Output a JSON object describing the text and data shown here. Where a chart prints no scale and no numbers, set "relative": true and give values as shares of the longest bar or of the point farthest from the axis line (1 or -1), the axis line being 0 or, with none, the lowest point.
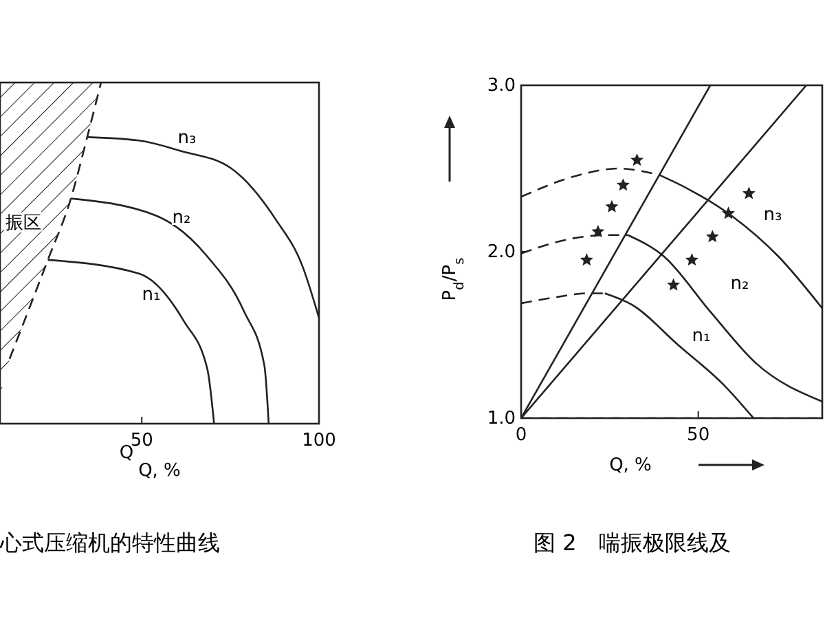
{
  "chart_data": [
    {
      "type": "line",
      "title": "心式压缩机的特性曲线",
      "xlabel": "Q, %",
      "relative": true,
      "tick_labels": "x",
      "xlim": [
        10,
        100
      ],
      "xticks": [
        50,
        100
      ],
      "series": [
        {
          "color": "#222222",
          "line_style": "dashed",
          "x": [
            12.7,
            23.5,
            30,
            34.6,
            38.5
          ],
          "values": [
            0.19,
            0.48,
            0.66,
            0.84,
            1
          ]
        },
        {
          "color": "#222222",
          "line_style": "solid",
          "x": [
            34.6,
            49.2,
            60.8,
            75,
            87.7,
            95.4,
            100
          ],
          "values": [
            0.84,
            0.83,
            0.8,
            0.75,
            0.6,
            0.46,
            0.31
          ]
        },
        {
          "color": "#222222",
          "line_style": "solid",
          "x": [
            30,
            54,
            68.5,
            78.8,
            84.6,
            85.8
          ],
          "values": [
            0.66,
            0.61,
            0.49,
            0.33,
            0.17,
            0
          ]
        },
        {
          "color": "#222222",
          "line_style": "solid",
          "x": [
            23.5,
            49.2,
            61.9,
            68.5,
            70.4
          ],
          "values": [
            0.48,
            0.44,
            0.3,
            0.16,
            0
          ]
        }
      ],
      "annotations": [
        "n₃",
        "n₂",
        "n₁",
        "振区",
        "Q"
      ]
    },
    {
      "type": "line",
      "title": "图 2　喘振极限线及",
      "xlabel": "Q, %",
      "ylabel": "P$_{d}$/P$_{s}$",
      "xlim": [
        0,
        85
      ],
      "ylim": [
        1,
        3
      ],
      "xticks": [
        0,
        50
      ],
      "yticks": [
        {
          "value": 1,
          "label": "1.0"
        },
        {
          "value": 2,
          "label": "2.0"
        },
        {
          "value": 3,
          "label": "3.0"
        }
      ],
      "ref_lines": [
        {
          "axis": "y",
          "value": 1,
          "line_style": "dashed"
        }
      ],
      "series": [
        {
          "color": "#222222",
          "line_style": "solid",
          "x": [
            0,
            53.4
          ],
          "values": [
            1,
            3
          ]
        },
        {
          "color": "#222222",
          "line_style": "solid",
          "x": [
            0,
            80.5
          ],
          "values": [
            1,
            3
          ]
        },
        {
          "color": "#222222",
          "line_style": "dashed",
          "x": [
            0,
            14.6,
            27.5,
            39.1
          ],
          "values": [
            2.33,
            2.45,
            2.5,
            2.46
          ]
        },
        {
          "color": "#222222",
          "line_style": "solid",
          "x": [
            39.1,
            46.9,
            59.8,
            72.7,
            85
          ],
          "values": [
            2.46,
            2.38,
            2.21,
            1.97,
            1.66
          ]
        },
        {
          "color": "#222222",
          "line_style": "dashed",
          "x": [
            0,
            14.6,
            23.6,
            30.1
          ],
          "values": [
            1.99,
            2.08,
            2.1,
            2.1
          ]
        },
        {
          "color": "#222222",
          "line_style": "solid",
          "x": [
            30.1,
            40.4,
            53.4,
            66.3,
            85
          ],
          "values": [
            2.1,
            1.97,
            1.64,
            1.33,
            1.1
          ]
        },
        {
          "color": "#222222",
          "line_style": "dashed",
          "x": [
            0,
            10.7,
            18.5,
            23.6
          ],
          "values": [
            1.69,
            1.73,
            1.75,
            1.75
          ]
        },
        {
          "color": "#222222",
          "line_style": "solid",
          "x": [
            23.6,
            31.4,
            44.3,
            57.2,
            65.6
          ],
          "values": [
            1.75,
            1.68,
            1.44,
            1.2,
            1
          ]
        },
        {
          "type": "scatter",
          "marker": "star",
          "color": "#222222",
          "x": [
            32.7,
            28.8,
            25.6,
            21.7,
            18.5,
            64.3,
            58.5,
            54,
            48.2,
            43
          ],
          "values": [
            2.55,
            2.4,
            2.27,
            2.12,
            1.95,
            2.35,
            2.23,
            2.09,
            1.95,
            1.8
          ]
        }
      ],
      "annotations": [
        "n₃",
        "n₂",
        "n₁"
      ]
    }
  ]
}
